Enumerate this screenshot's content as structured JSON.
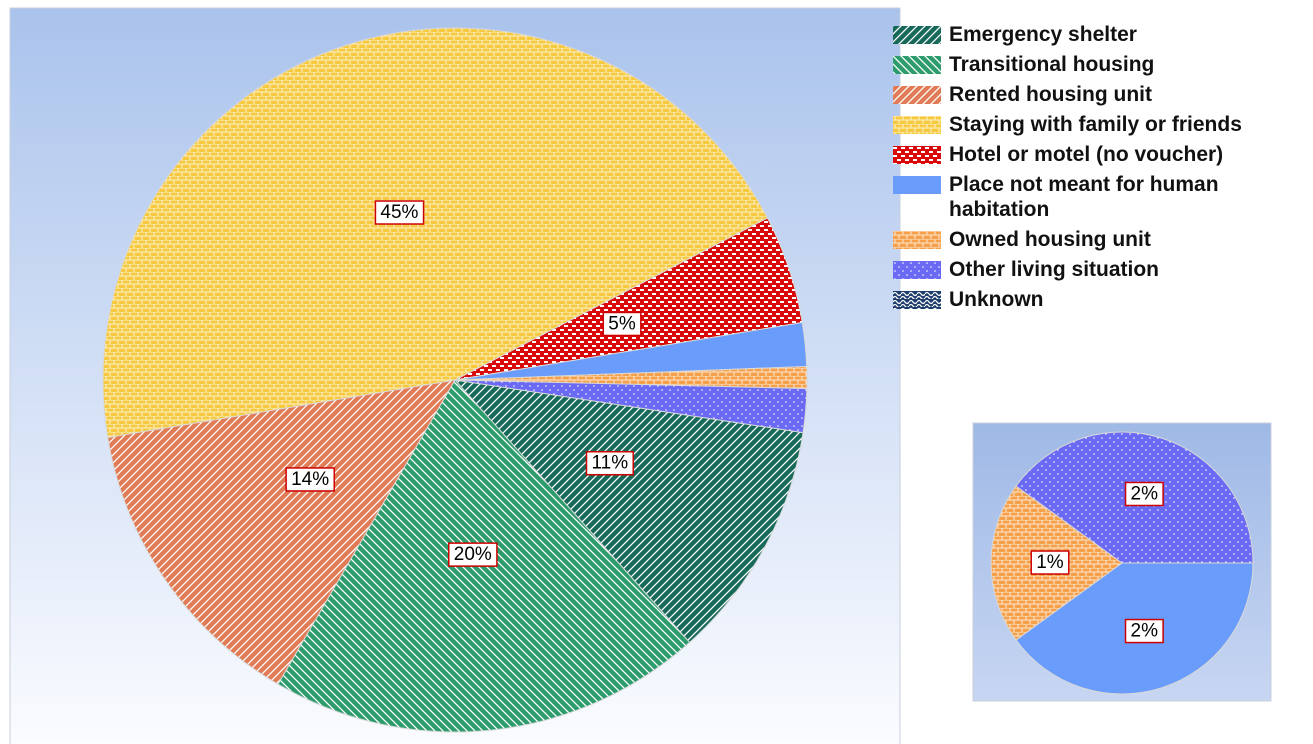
{
  "chart_data": {
    "type": "pie",
    "categories": [
      "Emergency shelter",
      "Transitional housing",
      "Rented housing unit",
      "Staying with family or friends",
      "Hotel or motel (no voucher)",
      "Place not meant for human habitation",
      "Owned housing unit",
      "Other living situation",
      "Unknown"
    ],
    "values": [
      11,
      20,
      14,
      45,
      5,
      2,
      1,
      2,
      0
    ],
    "value_labels": [
      "11%",
      "20%",
      "14%",
      "45%",
      "5%",
      "2%",
      "1%",
      "2%",
      null
    ],
    "colors": [
      "#17695a",
      "#2c9c6c",
      "#e07b55",
      "#f7c93e",
      "#d90a0a",
      "#6a9cfb",
      "#f5a04a",
      "#6a6af5",
      "#1d3c6e"
    ],
    "legend": "right"
  }
}
